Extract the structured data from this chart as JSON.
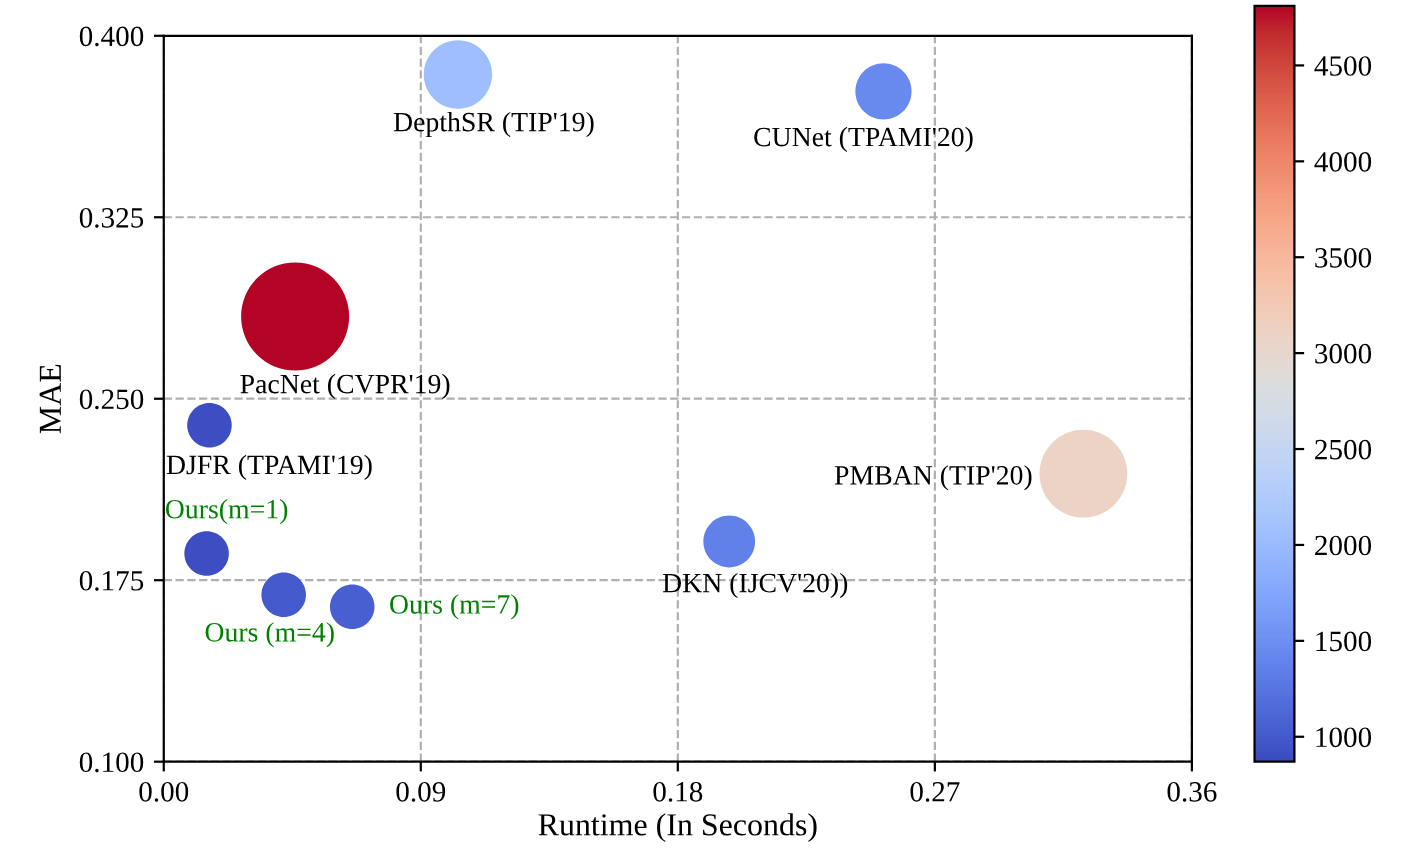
{
  "chart_data": {
    "type": "bubble",
    "xlabel": "Runtime (In Seconds)",
    "ylabel": "MAE",
    "x": [
      0.103,
      0.252,
      0.046,
      0.016,
      0.015,
      0.042,
      0.066,
      0.198,
      0.322
    ],
    "values": [
      0.384,
      0.377,
      0.284,
      0.239,
      0.186,
      0.169,
      0.164,
      0.191,
      0.219
    ],
    "sizes": [
      0.4,
      0.27,
      1,
      0.17,
      0.17,
      0.17,
      0.17,
      0.23,
      0.66
    ],
    "cvalues": [
      2050,
      1450,
      4800,
      900,
      900,
      1000,
      1050,
      1350,
      3100
    ],
    "clim": [
      870,
      4810
    ],
    "cticks": [
      1000,
      1500,
      2000,
      2500,
      3000,
      3500,
      4000,
      4500
    ],
    "xlim": [
      0.0,
      0.36
    ],
    "xticks": [
      {
        "value": 0,
        "label": "0.00"
      },
      0.09,
      0.18,
      0.27,
      {
        "value": 0.36,
        "label": "0.36"
      }
    ],
    "ylim": [
      0.1,
      0.4
    ],
    "yticks": [
      {
        "value": 0.1,
        "label": "0.100"
      },
      0.175,
      {
        "value": 0.25,
        "label": "0.250"
      },
      0.325,
      {
        "value": 0.4,
        "label": "0.400"
      }
    ],
    "grid": true,
    "annotations": [
      {
        "text": "DepthSR (TIP'19)",
        "x": 0.103,
        "y": 0.384
      },
      {
        "text": "CUNet (TPAMI'20)",
        "x": 0.252,
        "y": 0.377
      },
      {
        "text": "PacNet (CVPR'19)",
        "x": 0.046,
        "y": 0.284
      },
      {
        "text": "DJFR (TPAMI'19)",
        "x": 0.016,
        "y": 0.239
      },
      {
        "text": "Ours(m=1)",
        "x": 0.015,
        "y": 0.186
      },
      {
        "text": "Ours (m=4)",
        "x": 0.042,
        "y": 0.169
      },
      {
        "text": "Ours (m=7)",
        "x": 0.066,
        "y": 0.164
      },
      {
        "text": "DKN (IJCV'20))",
        "x": 0.198,
        "y": 0.191
      },
      {
        "text": "PMBAN (TIP'20)",
        "x": 0.322,
        "y": 0.219
      }
    ]
  }
}
